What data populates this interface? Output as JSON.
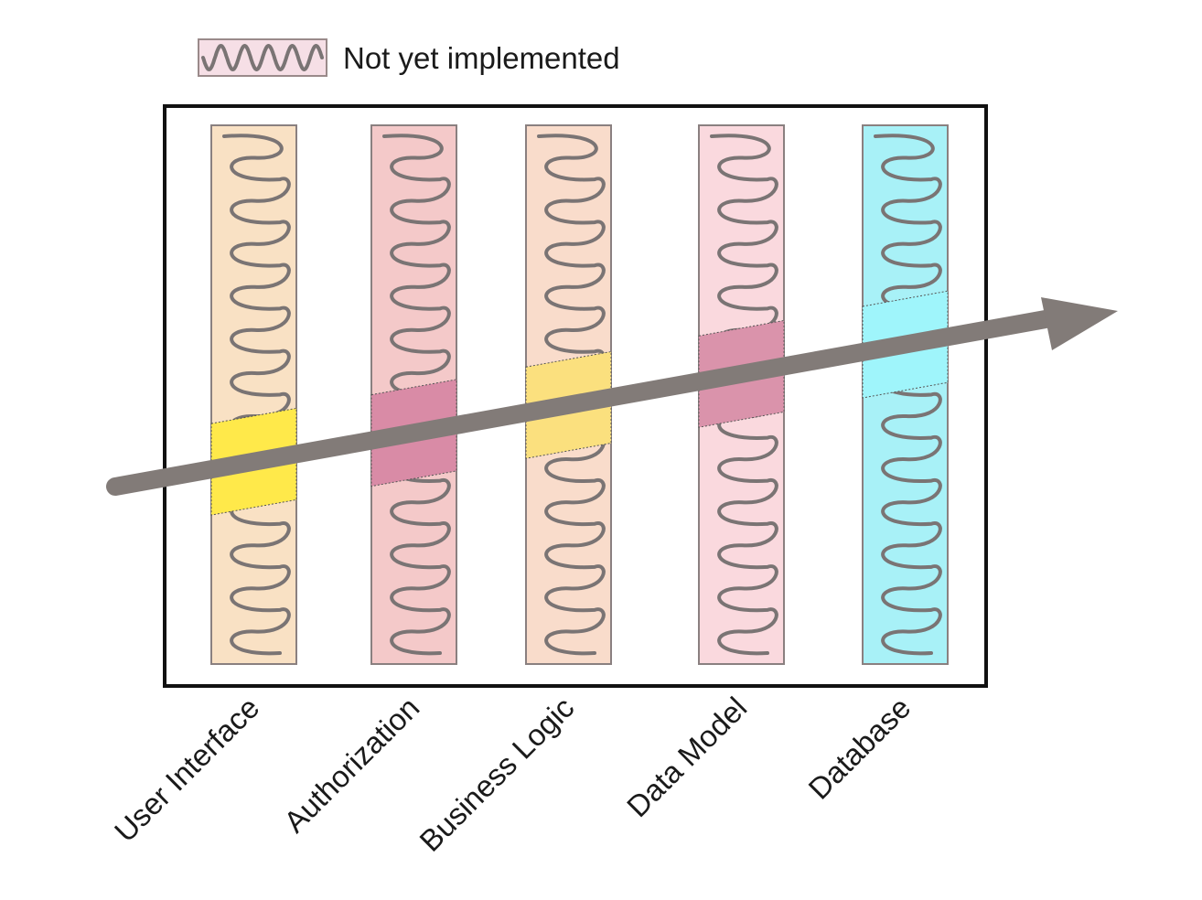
{
  "legend": {
    "label": "Not yet implemented",
    "swatch_fill": "#f6dfe6",
    "swatch_stroke": "#9a8a8a"
  },
  "frame": {
    "stroke": "#111111"
  },
  "arrow": {
    "color": "#827b78"
  },
  "layers": [
    {
      "id": "user-interface",
      "label": "User Interface",
      "fill": "#f9e1c4",
      "slice_fill": "#ffe94a"
    },
    {
      "id": "authorization",
      "label": "Authorization",
      "fill": "#f4c9c9",
      "slice_fill": "#d98ba6"
    },
    {
      "id": "business-logic",
      "label": "Business Logic",
      "fill": "#f9dccb",
      "slice_fill": "#fbe07e"
    },
    {
      "id": "data-model",
      "label": "Data Model",
      "fill": "#fad9de",
      "slice_fill": "#da93ab"
    },
    {
      "id": "database",
      "label": "Database",
      "fill": "#a8f1f7",
      "slice_fill": "#9ff5fb"
    }
  ]
}
